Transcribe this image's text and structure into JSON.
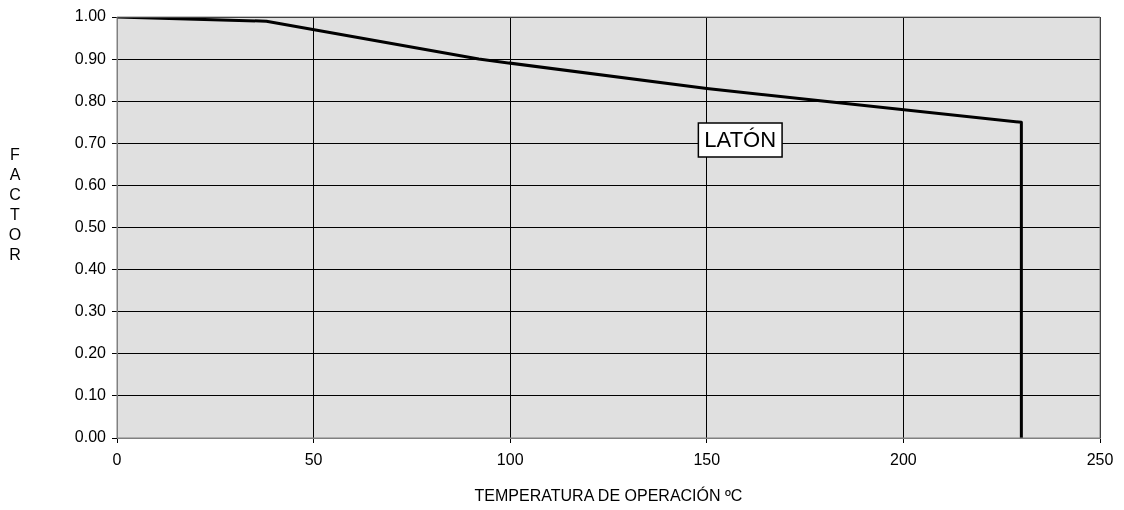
{
  "chart_data": {
    "type": "line",
    "xlabel": "TEMPERATURA DE OPERACIÓN ºC",
    "ylabel": "FACTOR",
    "series": [
      {
        "color": "#000000",
        "x": [
          0,
          38,
          92,
          150,
          180,
          230,
          230
        ],
        "values": [
          1.0,
          0.99,
          0.9,
          0.83,
          0.8,
          0.75,
          0.0
        ]
      }
    ],
    "xlim": [
      0,
      250
    ],
    "xticks": [
      0,
      50,
      100,
      150,
      200,
      250
    ],
    "ylim": [
      0,
      1
    ],
    "yticks": [
      {
        "value": 0,
        "label": "0.00"
      },
      {
        "value": 0.1,
        "label": "0.10"
      },
      {
        "value": 0.2,
        "label": "0.20"
      },
      {
        "value": 0.3,
        "label": "0.30"
      },
      {
        "value": 0.4,
        "label": "0.40"
      },
      {
        "value": 0.5,
        "label": "0.50"
      },
      {
        "value": 0.6,
        "label": "0.60"
      },
      {
        "value": 0.7,
        "label": "0.70"
      },
      {
        "value": 0.8,
        "label": "0.80"
      },
      {
        "value": 0.9,
        "label": "0.90"
      },
      {
        "value": 1,
        "label": "1.00"
      }
    ],
    "annotations": [
      "LATÓN"
    ],
    "grid": true,
    "legend": false,
    "marker": "none",
    "line_style": "solid"
  }
}
